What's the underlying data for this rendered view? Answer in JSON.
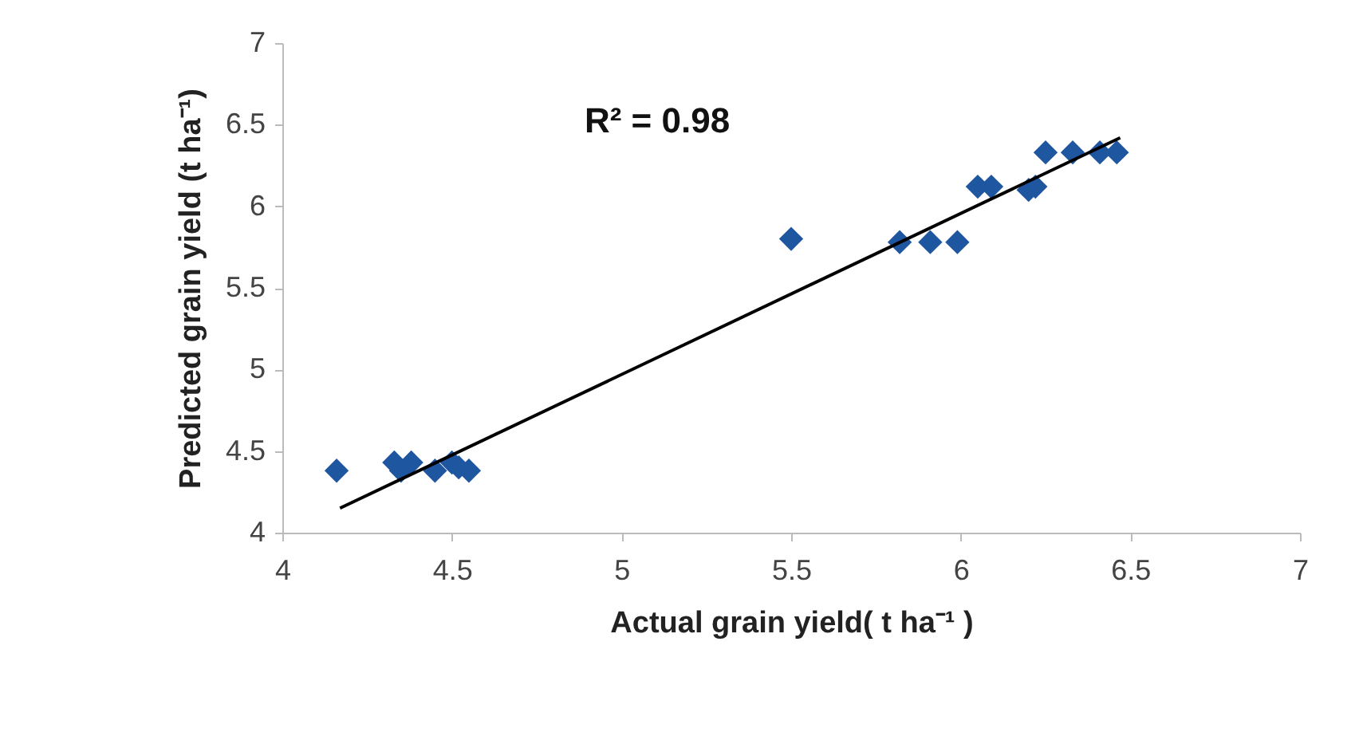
{
  "chart_data": {
    "type": "scatter",
    "xlabel": "Actual grain yield( t ha⁻¹ )",
    "ylabel": "Predicted grain yield (t ha⁻¹)",
    "annotations": [
      "R² = 0.98"
    ],
    "grid": false,
    "xlim": [
      4,
      7
    ],
    "xticks": [
      4,
      4.5,
      5,
      5.5,
      6,
      6.5,
      7
    ],
    "ylim": [
      4,
      7
    ],
    "yticks": [
      4,
      4.5,
      5,
      5.5,
      6,
      6.5,
      7
    ],
    "series": [
      {
        "marker": "diamond",
        "color": "#1f56a0",
        "x": [
          4.16,
          4.33,
          4.35,
          4.38,
          4.45,
          4.5,
          4.52,
          4.55,
          5.5,
          5.82,
          5.91,
          5.99,
          6.05,
          6.09,
          6.2,
          6.22,
          6.25,
          6.33,
          6.41,
          6.46
        ],
        "values": [
          4.38,
          4.43,
          4.38,
          4.43,
          4.38,
          4.43,
          4.4,
          4.38,
          5.8,
          5.78,
          5.78,
          5.78,
          6.12,
          6.12,
          6.1,
          6.12,
          6.33,
          6.33,
          6.33,
          6.33
        ]
      },
      {
        "type": "line",
        "marker": "none",
        "color": "#000000",
        "x": [
          4.17,
          6.47
        ],
        "values": [
          4.15,
          6.42
        ]
      }
    ]
  }
}
